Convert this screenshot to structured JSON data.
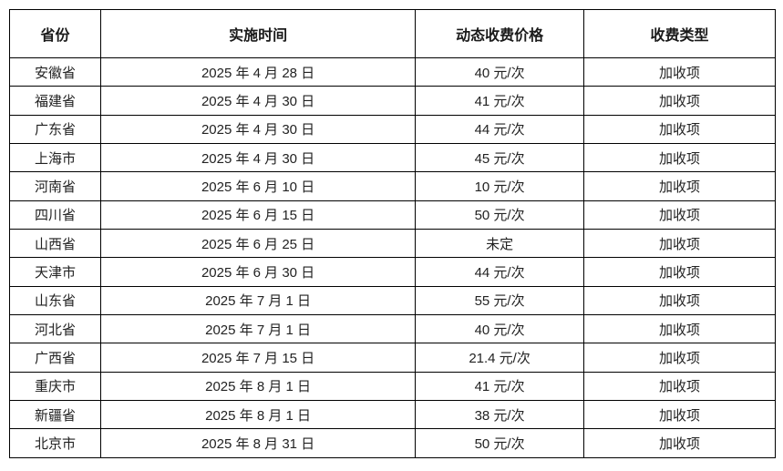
{
  "table": {
    "columns": [
      {
        "key": "province",
        "label": "省份"
      },
      {
        "key": "date",
        "label": "实施时间"
      },
      {
        "key": "price",
        "label": "动态收费价格"
      },
      {
        "key": "type",
        "label": "收费类型"
      }
    ],
    "rows": [
      {
        "province": "安徽省",
        "date": "2025 年 4 月 28 日",
        "price": "40 元/次",
        "type": "加收项"
      },
      {
        "province": "福建省",
        "date": "2025 年 4 月 30 日",
        "price": "41 元/次",
        "type": "加收项"
      },
      {
        "province": "广东省",
        "date": "2025 年 4 月 30 日",
        "price": "44 元/次",
        "type": "加收项"
      },
      {
        "province": "上海市",
        "date": "2025 年 4 月 30 日",
        "price": "45 元/次",
        "type": "加收项"
      },
      {
        "province": "河南省",
        "date": "2025 年 6 月 10 日",
        "price": "10 元/次",
        "type": "加收项"
      },
      {
        "province": "四川省",
        "date": "2025 年 6 月 15 日",
        "price": "50 元/次",
        "type": "加收项"
      },
      {
        "province": "山西省",
        "date": "2025 年 6 月 25 日",
        "price": "未定",
        "type": "加收项"
      },
      {
        "province": "天津市",
        "date": "2025 年 6 月 30 日",
        "price": "44 元/次",
        "type": "加收项"
      },
      {
        "province": "山东省",
        "date": "2025 年 7 月 1 日",
        "price": "55 元/次",
        "type": "加收项"
      },
      {
        "province": "河北省",
        "date": "2025 年 7 月 1 日",
        "price": "40 元/次",
        "type": "加收项"
      },
      {
        "province": "广西省",
        "date": "2025 年 7 月 15 日",
        "price": "21.4 元/次",
        "type": "加收项"
      },
      {
        "province": "重庆市",
        "date": "2025 年 8 月 1 日",
        "price": "41 元/次",
        "type": "加收项"
      },
      {
        "province": "新疆省",
        "date": "2025 年 8 月 1 日",
        "price": "38 元/次",
        "type": "加收项"
      },
      {
        "province": "北京市",
        "date": "2025 年 8 月 31 日",
        "price": "50 元/次",
        "type": "加收项"
      }
    ]
  },
  "colors": {
    "border": "#000000",
    "text": "#222222",
    "background": "#ffffff"
  }
}
